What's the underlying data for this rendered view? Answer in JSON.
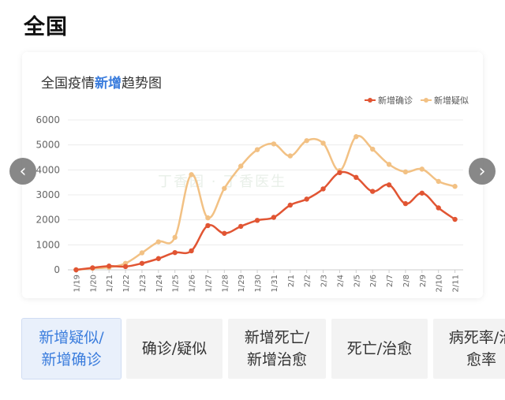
{
  "page": {
    "title": "全国"
  },
  "chart_title": {
    "prefix": "全国疫情",
    "highlight": "新增",
    "suffix": "趋势图"
  },
  "watermark": "丁香园 · 丁香医生",
  "nav": {
    "prev": "‹",
    "next": "›"
  },
  "tabs": [
    {
      "line1": "新增疑似/",
      "line2": "新增确诊",
      "active": true
    },
    {
      "line1": "确诊/疑似",
      "line2": "",
      "active": false
    },
    {
      "line1": "新增死亡/",
      "line2": "新增治愈",
      "active": false
    },
    {
      "line1": "死亡/治愈",
      "line2": "",
      "active": false
    },
    {
      "line1": "病死率/治",
      "line2": "愈率",
      "active": false
    }
  ],
  "chart_data": {
    "type": "line",
    "title": "全国疫情新增趋势图",
    "categories": [
      "1/19",
      "1/20",
      "1/21",
      "1/22",
      "1/23",
      "1/24",
      "1/25",
      "1/26",
      "1/27",
      "1/28",
      "1/29",
      "1/30",
      "1/31",
      "2/1",
      "2/2",
      "2/3",
      "2/4",
      "2/5",
      "2/6",
      "2/7",
      "2/8",
      "2/9",
      "2/10",
      "2/11"
    ],
    "series": [
      {
        "name": "新增确诊",
        "color": "#e15533",
        "values": [
          0,
          80,
          150,
          130,
          260,
          450,
          690,
          760,
          1770,
          1460,
          1740,
          1980,
          2100,
          2590,
          2830,
          3240,
          3890,
          3700,
          3140,
          3400,
          2650,
          3070,
          2480,
          2020
        ]
      },
      {
        "name": "新增疑似",
        "color": "#f2c184",
        "values": [
          0,
          60,
          100,
          260,
          680,
          1120,
          1300,
          3810,
          2080,
          3260,
          4150,
          4810,
          5040,
          4560,
          5170,
          5070,
          3970,
          5330,
          4830,
          4220,
          3920,
          4030,
          3540,
          3340
        ]
      }
    ],
    "y_ticks": [
      0,
      1000,
      2000,
      3000,
      4000,
      5000,
      6000
    ],
    "ylim": [
      0,
      6000
    ],
    "grid": true,
    "legend": "top-right"
  }
}
